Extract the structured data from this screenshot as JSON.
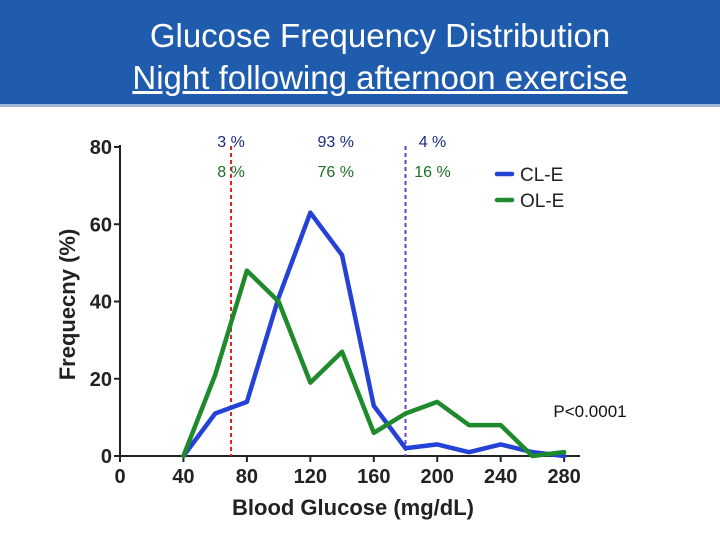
{
  "slide": {
    "title_line1": "Glucose Frequency Distribution",
    "title_line2": "Night following afternoon exercise",
    "header_color": "#1f5cad"
  },
  "chart_data": {
    "type": "line",
    "xlabel": "Blood Glucose (mg/dL)",
    "ylabel": "Frequecny (%)",
    "xlim": [
      0,
      290
    ],
    "ylim": [
      0,
      80
    ],
    "xticks": [
      0,
      40,
      80,
      120,
      160,
      200,
      240,
      280
    ],
    "yticks": [
      0,
      20,
      40,
      60,
      80
    ],
    "grid": false,
    "legend_position": "top-right",
    "series": [
      {
        "name": "CL-E",
        "color": "#2442d6",
        "x": [
          40,
          60,
          80,
          100,
          120,
          140,
          160,
          180,
          200,
          220,
          240,
          260,
          280
        ],
        "y": [
          0,
          11,
          14,
          41,
          63,
          52,
          13,
          2,
          3,
          1,
          3,
          1,
          0
        ]
      },
      {
        "name": "OL-E",
        "color": "#1f8a2c",
        "x": [
          40,
          60,
          80,
          100,
          120,
          140,
          160,
          180,
          200,
          220,
          240,
          260,
          280
        ],
        "y": [
          0,
          21,
          48,
          40,
          19,
          27,
          6,
          11,
          14,
          8,
          8,
          0,
          1
        ]
      }
    ],
    "vlines": [
      {
        "x": 70,
        "color": "#e02020"
      },
      {
        "x": 180,
        "color": "#7040c0"
      }
    ],
    "region_labels": {
      "cl": [
        "3 %",
        "93 %",
        "4 %"
      ],
      "ol": [
        "8 %",
        "76 %",
        "16 %"
      ],
      "x": [
        70,
        136,
        197
      ]
    },
    "annotation": "P<0.0001"
  }
}
